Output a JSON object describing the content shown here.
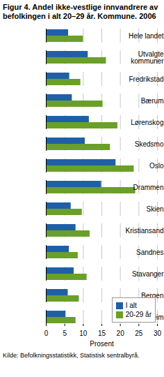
{
  "chart_data": {
    "type": "bar",
    "orientation": "horizontal",
    "title": "Figur 4. Andel ikke-vestlige innvandrere av befolkingen i alt 20–29 år. Kommune. 2006",
    "source": "Kilde: Befolkningsstatistikk, Statistisk sentralbyrå.",
    "x_label": "Prosent",
    "categories": [
      "Hele landet",
      "Utvalgte kommuner",
      "Fredrikstad",
      "Bærum",
      "Lørenskog",
      "Skedsmo",
      "Oslo",
      "Drammen",
      "Skien",
      "Kristiansand",
      "Sandnes",
      "Stavanger",
      "Bergen",
      "Trondheim"
    ],
    "series": [
      {
        "name": "I alt",
        "color": "#1f5fa8",
        "values": [
          6.0,
          11.3,
          6.3,
          7.0,
          11.6,
          10.5,
          18.8,
          14.9,
          6.7,
          8.0,
          6.2,
          7.5,
          5.9,
          5.3
        ]
      },
      {
        "name": "20-29 år",
        "color": "#6a9f2a",
        "values": [
          10.0,
          16.2,
          9.3,
          15.3,
          19.3,
          17.3,
          23.7,
          24.1,
          9.7,
          11.8,
          8.6,
          11.0,
          8.9,
          8.0
        ]
      }
    ],
    "xlim": [
      0,
      30
    ],
    "xticks": [
      0,
      5,
      10,
      15,
      20,
      25,
      30
    ],
    "grid": true,
    "legend": "bottom-right"
  }
}
